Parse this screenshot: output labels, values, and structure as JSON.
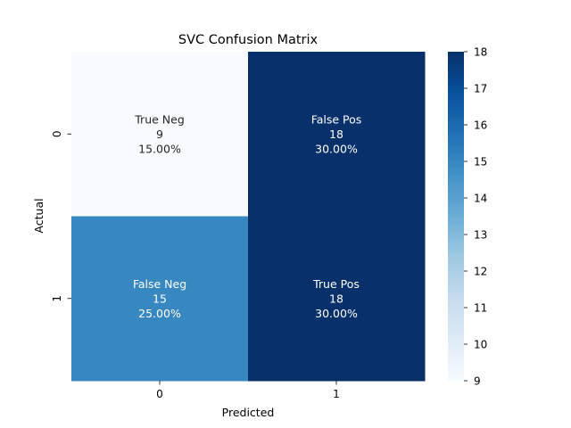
{
  "chart_data": {
    "type": "heatmap",
    "title": "SVC Confusion Matrix",
    "xlabel": "Predicted",
    "ylabel": "Actual",
    "x_categories": [
      "0",
      "1"
    ],
    "y_categories": [
      "0",
      "1"
    ],
    "values": [
      [
        9,
        18
      ],
      [
        15,
        18
      ]
    ],
    "cell_labels": [
      [
        [
          "True Neg",
          "9",
          "15.00%"
        ],
        [
          "False Pos",
          "18",
          "30.00%"
        ]
      ],
      [
        [
          "False Neg",
          "15",
          "25.00%"
        ],
        [
          "True Pos",
          "18",
          "30.00%"
        ]
      ]
    ],
    "colormap": "Blues",
    "colorbar": {
      "min": 9,
      "max": 18,
      "ticks": [
        9,
        10,
        11,
        12,
        13,
        14,
        15,
        16,
        17,
        18
      ]
    }
  }
}
